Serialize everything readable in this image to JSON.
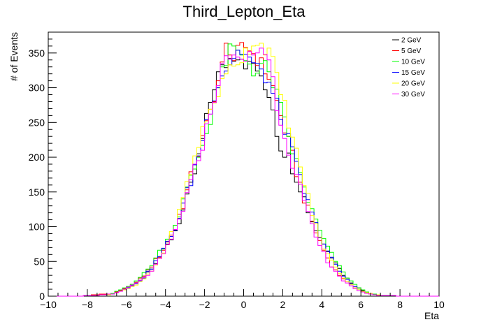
{
  "chart_data": {
    "type": "line",
    "title": "Third_Lepton_Eta",
    "xlabel": "Eta",
    "ylabel": "# of Events",
    "xlim": [
      -10,
      10
    ],
    "ylim": [
      0,
      380
    ],
    "x_ticks": [
      -10,
      -8,
      -6,
      -4,
      -2,
      0,
      2,
      4,
      6,
      8,
      10
    ],
    "y_ticks": [
      0,
      50,
      100,
      150,
      200,
      250,
      300,
      350
    ],
    "legend": "top-right",
    "grid": false,
    "bin_width": 0.2,
    "series": [
      {
        "name": "2 GeV",
        "color": "#000000",
        "center_eta": 0.0,
        "values": [
          [
            -7.0,
            2
          ],
          [
            -6.6,
            4
          ],
          [
            -6.2,
            9
          ],
          [
            -5.8,
            15
          ],
          [
            -5.4,
            22
          ],
          [
            -5.0,
            32
          ],
          [
            -4.6,
            45
          ],
          [
            -4.2,
            60
          ],
          [
            -3.8,
            78
          ],
          [
            -3.4,
            100
          ],
          [
            -3.0,
            130
          ],
          [
            -2.6,
            165
          ],
          [
            -2.2,
            210
          ],
          [
            -1.8,
            268
          ],
          [
            -1.4,
            315
          ],
          [
            -1.0,
            330
          ],
          [
            -0.6,
            345
          ],
          [
            -0.2,
            350
          ],
          [
            0.2,
            330
          ],
          [
            0.6,
            335
          ],
          [
            1.0,
            300
          ],
          [
            1.4,
            290
          ],
          [
            1.8,
            220
          ],
          [
            2.2,
            205
          ],
          [
            2.6,
            180
          ],
          [
            3.0,
            150
          ],
          [
            3.4,
            115
          ],
          [
            3.8,
            90
          ],
          [
            4.2,
            70
          ],
          [
            4.6,
            55
          ],
          [
            5.0,
            35
          ],
          [
            5.4,
            22
          ],
          [
            5.8,
            13
          ],
          [
            6.2,
            7
          ],
          [
            6.6,
            3
          ],
          [
            7.0,
            1
          ]
        ]
      },
      {
        "name": "5 GeV",
        "color": "#ff0000",
        "center_eta": 0.0,
        "values": [
          [
            -7.0,
            3
          ],
          [
            -6.6,
            5
          ],
          [
            -6.2,
            9
          ],
          [
            -5.8,
            14
          ],
          [
            -5.4,
            22
          ],
          [
            -5.0,
            33
          ],
          [
            -4.6,
            48
          ],
          [
            -4.2,
            62
          ],
          [
            -3.8,
            82
          ],
          [
            -3.4,
            110
          ],
          [
            -3.0,
            140
          ],
          [
            -2.6,
            180
          ],
          [
            -2.2,
            215
          ],
          [
            -1.8,
            255
          ],
          [
            -1.4,
            300
          ],
          [
            -1.0,
            340
          ],
          [
            -0.8,
            378
          ],
          [
            -0.6,
            335
          ],
          [
            -0.2,
            355
          ],
          [
            0.2,
            360
          ],
          [
            0.6,
            345
          ],
          [
            1.0,
            330
          ],
          [
            1.4,
            310
          ],
          [
            1.8,
            270
          ],
          [
            2.2,
            230
          ],
          [
            2.6,
            190
          ],
          [
            3.0,
            150
          ],
          [
            3.4,
            115
          ],
          [
            3.8,
            85
          ],
          [
            4.2,
            60
          ],
          [
            4.6,
            40
          ],
          [
            5.0,
            28
          ],
          [
            5.4,
            18
          ],
          [
            5.8,
            10
          ],
          [
            6.2,
            5
          ],
          [
            6.6,
            2
          ],
          [
            7.0,
            1
          ]
        ]
      },
      {
        "name": "10 GeV",
        "color": "#00ff00",
        "center_eta": 0.2,
        "values": [
          [
            -7.0,
            2
          ],
          [
            -6.6,
            5
          ],
          [
            -6.2,
            10
          ],
          [
            -5.8,
            16
          ],
          [
            -5.4,
            25
          ],
          [
            -5.0,
            35
          ],
          [
            -4.6,
            50
          ],
          [
            -4.2,
            68
          ],
          [
            -3.8,
            85
          ],
          [
            -3.4,
            110
          ],
          [
            -3.0,
            145
          ],
          [
            -2.6,
            175
          ],
          [
            -2.2,
            210
          ],
          [
            -1.8,
            245
          ],
          [
            -1.4,
            290
          ],
          [
            -1.0,
            330
          ],
          [
            -0.6,
            360
          ],
          [
            -0.2,
            345
          ],
          [
            0.2,
            340
          ],
          [
            0.6,
            320
          ],
          [
            1.0,
            335
          ],
          [
            1.4,
            315
          ],
          [
            1.8,
            280
          ],
          [
            2.2,
            240
          ],
          [
            2.6,
            200
          ],
          [
            3.0,
            165
          ],
          [
            3.4,
            130
          ],
          [
            3.8,
            100
          ],
          [
            4.2,
            75
          ],
          [
            4.6,
            55
          ],
          [
            5.0,
            38
          ],
          [
            5.4,
            24
          ],
          [
            5.8,
            14
          ],
          [
            6.2,
            7
          ],
          [
            6.6,
            3
          ],
          [
            7.0,
            1
          ]
        ]
      },
      {
        "name": "15 GeV",
        "color": "#0000ff",
        "center_eta": 0.1,
        "values": [
          [
            -7.0,
            2
          ],
          [
            -6.6,
            4
          ],
          [
            -6.2,
            8
          ],
          [
            -5.8,
            13
          ],
          [
            -5.4,
            20
          ],
          [
            -5.0,
            30
          ],
          [
            -4.6,
            45
          ],
          [
            -4.2,
            62
          ],
          [
            -3.8,
            80
          ],
          [
            -3.4,
            105
          ],
          [
            -3.0,
            140
          ],
          [
            -2.6,
            175
          ],
          [
            -2.2,
            215
          ],
          [
            -1.8,
            262
          ],
          [
            -1.4,
            300
          ],
          [
            -1.0,
            325
          ],
          [
            -0.6,
            340
          ],
          [
            -0.2,
            355
          ],
          [
            0.2,
            345
          ],
          [
            0.6,
            330
          ],
          [
            1.0,
            320
          ],
          [
            1.4,
            300
          ],
          [
            1.8,
            265
          ],
          [
            2.2,
            235
          ],
          [
            2.6,
            195
          ],
          [
            3.0,
            160
          ],
          [
            3.4,
            125
          ],
          [
            3.8,
            95
          ],
          [
            4.2,
            70
          ],
          [
            4.6,
            48
          ],
          [
            5.0,
            32
          ],
          [
            5.4,
            20
          ],
          [
            5.8,
            12
          ],
          [
            6.2,
            6
          ],
          [
            6.6,
            3
          ],
          [
            7.0,
            1
          ]
        ]
      },
      {
        "name": "20 GeV",
        "color": "#ffff00",
        "center_eta": 0.3,
        "values": [
          [
            -7.0,
            2
          ],
          [
            -6.6,
            4
          ],
          [
            -6.2,
            8
          ],
          [
            -5.8,
            12
          ],
          [
            -5.4,
            18
          ],
          [
            -5.0,
            27
          ],
          [
            -4.6,
            40
          ],
          [
            -4.2,
            58
          ],
          [
            -3.8,
            80
          ],
          [
            -3.4,
            110
          ],
          [
            -3.0,
            150
          ],
          [
            -2.6,
            190
          ],
          [
            -2.2,
            230
          ],
          [
            -1.8,
            260
          ],
          [
            -1.4,
            290
          ],
          [
            -1.0,
            310
          ],
          [
            -0.6,
            335
          ],
          [
            -0.2,
            340
          ],
          [
            0.2,
            355
          ],
          [
            0.6,
            368
          ],
          [
            1.0,
            360
          ],
          [
            1.4,
            350
          ],
          [
            1.8,
            300
          ],
          [
            2.2,
            265
          ],
          [
            2.6,
            215
          ],
          [
            3.0,
            175
          ],
          [
            3.4,
            130
          ],
          [
            3.8,
            90
          ],
          [
            4.2,
            65
          ],
          [
            4.6,
            45
          ],
          [
            5.0,
            30
          ],
          [
            5.4,
            19
          ],
          [
            5.8,
            11
          ],
          [
            6.2,
            6
          ],
          [
            6.6,
            3
          ],
          [
            7.0,
            1
          ]
        ]
      },
      {
        "name": "30 GeV",
        "color": "#ff00ff",
        "center_eta": 0.0,
        "values": [
          [
            -7.0,
            2
          ],
          [
            -6.6,
            4
          ],
          [
            -6.2,
            8
          ],
          [
            -5.8,
            14
          ],
          [
            -5.4,
            20
          ],
          [
            -5.0,
            28
          ],
          [
            -4.6,
            40
          ],
          [
            -4.2,
            55
          ],
          [
            -3.8,
            75
          ],
          [
            -3.4,
            100
          ],
          [
            -3.0,
            135
          ],
          [
            -2.6,
            170
          ],
          [
            -2.2,
            210
          ],
          [
            -1.8,
            250
          ],
          [
            -1.4,
            300
          ],
          [
            -1.0,
            335
          ],
          [
            -0.6,
            355
          ],
          [
            -0.2,
            330
          ],
          [
            0.2,
            345
          ],
          [
            0.6,
            350
          ],
          [
            1.0,
            360
          ],
          [
            1.4,
            330
          ],
          [
            1.8,
            260
          ],
          [
            2.2,
            225
          ],
          [
            2.6,
            180
          ],
          [
            3.0,
            145
          ],
          [
            3.4,
            105
          ],
          [
            3.8,
            78
          ],
          [
            4.2,
            55
          ],
          [
            4.6,
            40
          ],
          [
            5.0,
            25
          ],
          [
            5.4,
            16
          ],
          [
            5.8,
            9
          ],
          [
            6.2,
            5
          ],
          [
            6.6,
            2
          ],
          [
            7.0,
            1
          ]
        ]
      }
    ]
  }
}
